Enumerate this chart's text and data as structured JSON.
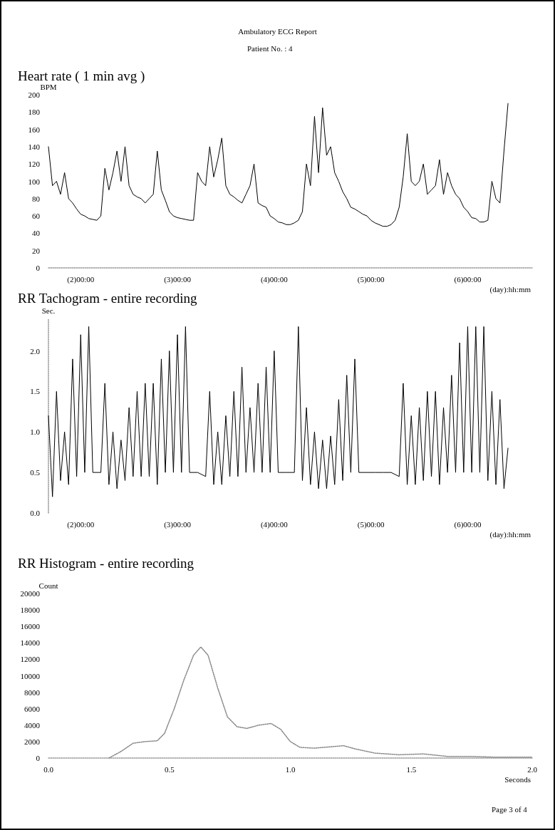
{
  "chart_data": [
    {
      "type": "line",
      "title": "Heart rate ( 1 min avg )",
      "xlabel": "(day):hh:mm",
      "ylabel": "BPM",
      "annotations": [
        "Ambulatory ECG Report",
        "Patient No. : 4"
      ],
      "line_style": "solid",
      "color": "#000000",
      "categories": [
        null,
        null,
        null,
        null,
        null,
        null,
        null,
        null,
        "(2)00:00",
        null,
        null,
        null,
        null,
        null,
        null,
        null,
        null,
        null,
        null,
        null,
        null,
        null,
        null,
        null,
        null,
        null,
        null,
        null,
        null,
        null,
        null,
        null,
        "(3)00:00",
        null,
        null,
        null,
        null,
        null,
        null,
        null,
        null,
        null,
        null,
        null,
        null,
        null,
        null,
        null,
        null,
        null,
        null,
        null,
        null,
        null,
        null,
        null,
        "(4)00:00",
        null,
        null,
        null,
        null,
        null,
        null,
        null,
        null,
        null,
        null,
        null,
        null,
        null,
        null,
        null,
        null,
        null,
        null,
        null,
        null,
        null,
        null,
        null,
        "(5)00:00",
        null,
        null,
        null,
        null,
        null,
        null,
        null,
        null,
        null,
        null,
        null,
        null,
        null,
        null,
        null,
        null,
        null,
        null,
        null,
        null,
        null,
        null,
        null,
        "(6)00:00",
        null,
        null,
        null,
        null,
        null,
        null,
        null,
        null,
        null,
        null,
        null,
        null,
        null,
        null,
        null,
        null
      ],
      "values": [
        140,
        95,
        100,
        85,
        110,
        80,
        75,
        68,
        62,
        60,
        57,
        56,
        55,
        60,
        115,
        90,
        110,
        135,
        100,
        140,
        95,
        85,
        82,
        80,
        75,
        80,
        85,
        135,
        90,
        78,
        65,
        60,
        58,
        57,
        56,
        55,
        55,
        110,
        100,
        95,
        140,
        105,
        125,
        150,
        95,
        85,
        82,
        78,
        75,
        85,
        95,
        120,
        75,
        72,
        70,
        60,
        57,
        53,
        52,
        50,
        50,
        52,
        55,
        65,
        120,
        95,
        175,
        110,
        185,
        130,
        140,
        110,
        100,
        88,
        80,
        70,
        68,
        65,
        62,
        60,
        55,
        52,
        50,
        48,
        48,
        50,
        55,
        70,
        105,
        155,
        100,
        95,
        100,
        120,
        85,
        90,
        95,
        125,
        85,
        110,
        95,
        85,
        80,
        70,
        65,
        58,
        57,
        53,
        53,
        55,
        100,
        80,
        75,
        135,
        190,
        null,
        null,
        null,
        null,
        null,
        null
      ],
      "ylim": [
        0,
        200
      ],
      "yticks": [
        0,
        20,
        40,
        60,
        80,
        100,
        120,
        140,
        160,
        180,
        200
      ]
    },
    {
      "type": "line",
      "title": "RR Tachogram - entire recording",
      "xlabel": "(day):hh:mm",
      "ylabel": "Sec.",
      "line_style": "solid",
      "color": "#000000",
      "categories": [
        null,
        null,
        null,
        null,
        null,
        null,
        null,
        null,
        "(2)00:00",
        null,
        null,
        null,
        null,
        null,
        null,
        null,
        null,
        null,
        null,
        null,
        null,
        null,
        null,
        null,
        null,
        null,
        null,
        null,
        null,
        null,
        null,
        null,
        "(3)00:00",
        null,
        null,
        null,
        null,
        null,
        null,
        null,
        null,
        null,
        null,
        null,
        null,
        null,
        null,
        null,
        null,
        null,
        null,
        null,
        null,
        null,
        null,
        null,
        "(4)00:00",
        null,
        null,
        null,
        null,
        null,
        null,
        null,
        null,
        null,
        null,
        null,
        null,
        null,
        null,
        null,
        null,
        null,
        null,
        null,
        null,
        null,
        null,
        null,
        "(5)00:00",
        null,
        null,
        null,
        null,
        null,
        null,
        null,
        null,
        null,
        null,
        null,
        null,
        null,
        null,
        null,
        null,
        null,
        null,
        null,
        null,
        null,
        null,
        null,
        "(6)00:00",
        null,
        null,
        null,
        null,
        null,
        null,
        null,
        null,
        null,
        null,
        null,
        null,
        null,
        null,
        null,
        null
      ],
      "values": [
        1.2,
        0.2,
        1.5,
        0.4,
        1.0,
        0.35,
        1.9,
        0.45,
        2.2,
        0.5,
        2.3,
        0.5,
        null,
        0.5,
        1.6,
        0.35,
        1.0,
        0.3,
        0.9,
        0.4,
        1.3,
        0.45,
        1.5,
        0.45,
        1.6,
        0.45,
        1.6,
        0.35,
        1.9,
        0.5,
        2.0,
        0.5,
        2.2,
        0.5,
        2.3,
        0.5,
        null,
        0.5,
        null,
        0.45,
        1.5,
        0.35,
        1.0,
        0.35,
        1.2,
        0.45,
        1.5,
        0.45,
        1.8,
        0.5,
        1.3,
        0.5,
        1.6,
        0.5,
        1.8,
        0.5,
        2.0,
        0.5,
        null,
        0.5,
        null,
        0.5,
        2.3,
        0.4,
        1.3,
        0.35,
        1.0,
        0.3,
        0.9,
        0.3,
        0.95,
        0.35,
        1.4,
        0.4,
        1.7,
        0.5,
        1.9,
        0.5,
        null,
        0.5,
        null,
        0.5,
        null,
        0.5,
        null,
        0.5,
        null,
        0.45,
        1.6,
        0.35,
        1.2,
        0.35,
        1.3,
        0.4,
        1.5,
        0.45,
        1.5,
        0.35,
        1.3,
        0.5,
        1.7,
        0.5,
        2.1,
        0.5,
        2.3,
        0.5,
        2.3,
        0.5,
        2.3,
        0.4,
        1.5,
        0.35,
        1.4,
        0.3,
        0.8,
        null,
        null,
        null,
        null,
        null,
        null
      ],
      "ylim": [
        0,
        2.4
      ],
      "yticks": [
        {
          "value": 0,
          "label": "0.0"
        },
        0.5,
        {
          "value": 1,
          "label": "1.0"
        },
        1.5,
        {
          "value": 2,
          "label": "2.0"
        }
      ]
    },
    {
      "type": "line",
      "title": "RR Histogram - entire recording",
      "xlabel": "Seconds",
      "ylabel": "Count",
      "annotations": [
        "Page 3 of 4"
      ],
      "line_style": "dotted",
      "color": "#888888",
      "x": [
        0.25,
        0.3,
        0.35,
        0.4,
        0.45,
        0.48,
        0.52,
        0.56,
        0.6,
        0.63,
        0.66,
        0.7,
        0.74,
        0.78,
        0.82,
        0.87,
        0.92,
        0.96,
        1.0,
        1.04,
        1.1,
        1.18,
        1.22,
        1.27,
        1.35,
        1.45,
        1.55,
        1.65,
        1.75,
        1.85,
        2.0
      ],
      "values": [
        0,
        800,
        1800,
        2000,
        2100,
        3000,
        6000,
        9500,
        12500,
        13500,
        12500,
        8500,
        5000,
        3800,
        3600,
        4000,
        4200,
        3500,
        2000,
        1300,
        1200,
        1400,
        1500,
        1100,
        600,
        400,
        500,
        200,
        200,
        100,
        100
      ],
      "xlim": [
        0,
        2
      ],
      "xticks": [
        {
          "value": 0,
          "label": "0.0"
        },
        0.5,
        {
          "value": 1,
          "label": "1.0"
        },
        1.5,
        {
          "value": 2,
          "label": "2.0"
        }
      ],
      "ylim": [
        0,
        20000
      ],
      "yticks": [
        0,
        2000,
        4000,
        6000,
        8000,
        10000,
        12000,
        14000,
        16000,
        18000,
        20000
      ]
    }
  ]
}
